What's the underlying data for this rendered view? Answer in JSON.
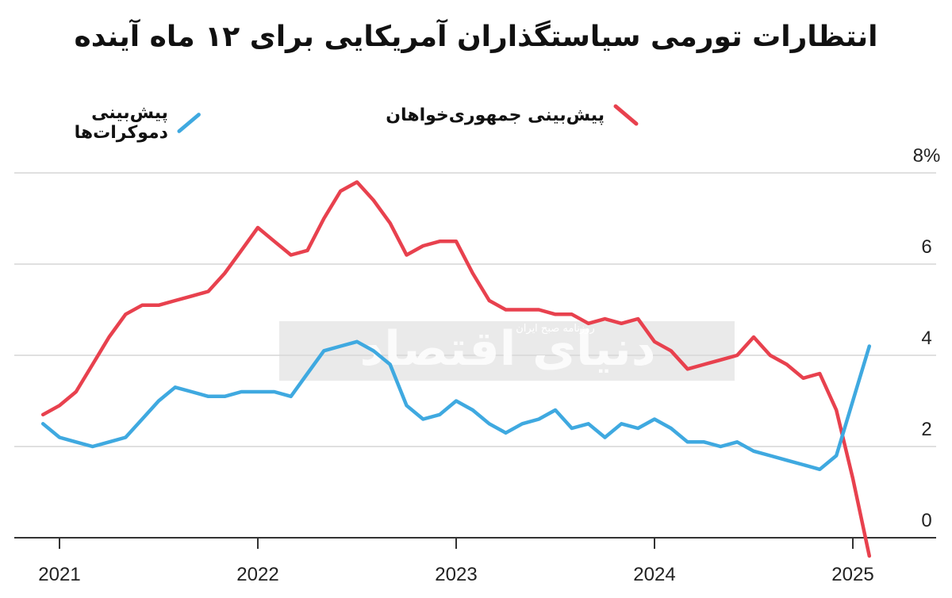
{
  "chart_data": {
    "type": "line",
    "title": "انتظارات تورمی سیاستگذاران آمریکایی برای ۱۲ ماه آینده",
    "x": [
      "2020-12",
      "2021-01",
      "2021-02",
      "2021-03",
      "2021-04",
      "2021-05",
      "2021-06",
      "2021-07",
      "2021-08",
      "2021-09",
      "2021-10",
      "2021-11",
      "2021-12",
      "2022-01",
      "2022-02",
      "2022-03",
      "2022-04",
      "2022-05",
      "2022-06",
      "2022-07",
      "2022-08",
      "2022-09",
      "2022-10",
      "2022-11",
      "2022-12",
      "2023-01",
      "2023-02",
      "2023-03",
      "2023-04",
      "2023-05",
      "2023-06",
      "2023-07",
      "2023-08",
      "2023-09",
      "2023-10",
      "2023-11",
      "2023-12",
      "2024-01",
      "2024-02",
      "2024-03",
      "2024-04",
      "2024-05",
      "2024-06",
      "2024-07",
      "2024-08",
      "2024-09",
      "2024-10",
      "2024-11",
      "2024-12",
      "2025-01",
      "2025-02"
    ],
    "series": [
      {
        "name": "پیش‌بینی جمهوری‌خواهان",
        "color": "#e8414e",
        "values": [
          2.7,
          2.9,
          3.2,
          3.8,
          4.4,
          4.9,
          5.1,
          5.1,
          5.2,
          5.3,
          5.4,
          5.8,
          6.3,
          6.8,
          6.5,
          6.2,
          6.3,
          7.0,
          7.6,
          7.8,
          7.4,
          6.9,
          6.2,
          6.4,
          6.5,
          6.5,
          5.8,
          5.2,
          5.0,
          5.0,
          5.0,
          4.9,
          4.9,
          4.7,
          4.8,
          4.7,
          4.8,
          4.3,
          4.1,
          3.7,
          3.8,
          3.9,
          4.0,
          4.4,
          4.0,
          3.8,
          3.5,
          3.6,
          2.8,
          1.3,
          -0.4
        ]
      },
      {
        "name": "پیش‌بینی دموکرات‌ها",
        "color": "#3fa9e0",
        "values": [
          2.5,
          2.2,
          2.1,
          2.0,
          2.1,
          2.2,
          2.6,
          3.0,
          3.3,
          3.2,
          3.1,
          3.1,
          3.2,
          3.2,
          3.2,
          3.1,
          3.6,
          4.1,
          4.2,
          4.3,
          4.1,
          3.8,
          2.9,
          2.6,
          2.7,
          3.0,
          2.8,
          2.5,
          2.3,
          2.5,
          2.6,
          2.8,
          2.4,
          2.5,
          2.2,
          2.5,
          2.4,
          2.6,
          2.4,
          2.1,
          2.1,
          2.0,
          2.1,
          1.9,
          1.8,
          1.7,
          1.6,
          1.5,
          1.8,
          3.0,
          4.2
        ]
      }
    ],
    "ylim": [
      -0.5,
      8
    ],
    "yticks": [
      "0",
      "2",
      "4",
      "6",
      "8%"
    ],
    "ytick_values": [
      0,
      2,
      4,
      6,
      8
    ],
    "xticks": [
      "2021",
      "2022",
      "2023",
      "2024",
      "2025"
    ],
    "grid": true,
    "legend": "top"
  },
  "watermark": {
    "main": "دنیای اقتصاد",
    "sub": "روزنامه صبح ایران"
  },
  "icons": [
    "red-line-swatch-icon",
    "blue-line-swatch-icon"
  ]
}
